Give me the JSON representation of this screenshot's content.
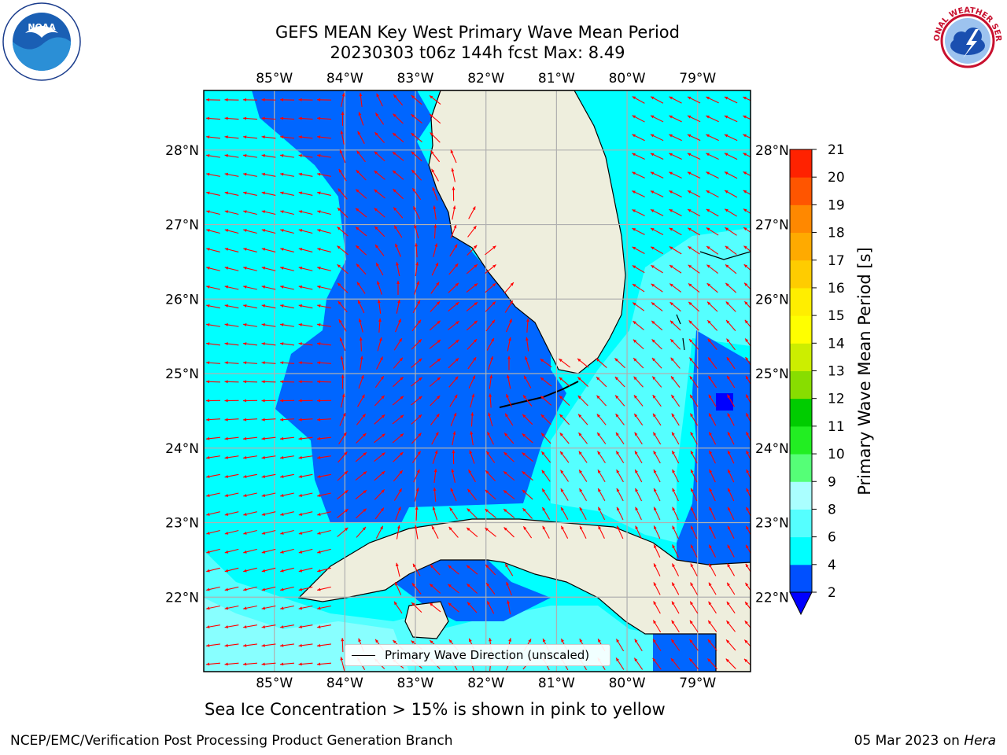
{
  "title": {
    "line1": "GEFS MEAN Key West Primary Wave Mean Period",
    "line2": "20230303 t06z 144h fcst   Max: 8.49"
  },
  "logos": {
    "left": "noaa-logo",
    "left_text": "NOAA",
    "right": "national-weather-service-logo",
    "right_text": "NATIONAL WEATHER SERVICE"
  },
  "axes": {
    "lon_labels": [
      "85°W",
      "84°W",
      "83°W",
      "82°W",
      "81°W",
      "80°W",
      "79°W"
    ],
    "lat_labels": [
      "28°N",
      "27°N",
      "26°N",
      "25°N",
      "24°N",
      "23°N",
      "22°N"
    ],
    "lon_values": [
      -85,
      -84,
      -83,
      -82,
      -81,
      -80,
      -79
    ],
    "lat_values": [
      28,
      27,
      26,
      25,
      24,
      23,
      22
    ],
    "lon_range": [
      -86.0,
      -78.25
    ],
    "lat_range": [
      21.0,
      28.8
    ],
    "grid": true
  },
  "colorbar": {
    "label": "Primary Wave Mean Period [s]",
    "ticks": [
      "21",
      "20",
      "19",
      "18",
      "17",
      "16",
      "15",
      "14",
      "13",
      "12",
      "11",
      "10",
      "9",
      "8",
      "6",
      "4",
      "2"
    ],
    "levels": [
      2,
      4,
      6,
      8,
      9,
      10,
      11,
      12,
      13,
      14,
      15,
      16,
      17,
      18,
      19,
      20,
      21
    ],
    "colors": [
      "#0050ff",
      "#00ffff",
      "#55ffff",
      "#aaffff",
      "#55ff77",
      "#22ee22",
      "#00cc00",
      "#88dd00",
      "#ccee00",
      "#ffff00",
      "#ffee00",
      "#ffcc00",
      "#ffaa00",
      "#ff8800",
      "#ff5500",
      "#ff2200",
      "#ff0000"
    ],
    "under_color": "#0000ff"
  },
  "map_colors": {
    "land": "#eeeedd",
    "coastline": "#000000",
    "arrow": "#ff0000",
    "grid": "#b0b0b0",
    "class_2_4": "#0066ff",
    "class_4_6": "#00ffff",
    "class_6_8": "#55ffff",
    "class_8_9": "#aaffff"
  },
  "legend": {
    "label": "Primary Wave Direction (unscaled)"
  },
  "notes": {
    "ice": "Sea Ice Concentration > 15% is shown in pink to yellow"
  },
  "footer": {
    "left": "NCEP/EMC/Verification Post Processing Product Generation Branch",
    "date": "05 Mar 2023 on ",
    "machine": "Hera"
  },
  "max_value": 8.49
}
